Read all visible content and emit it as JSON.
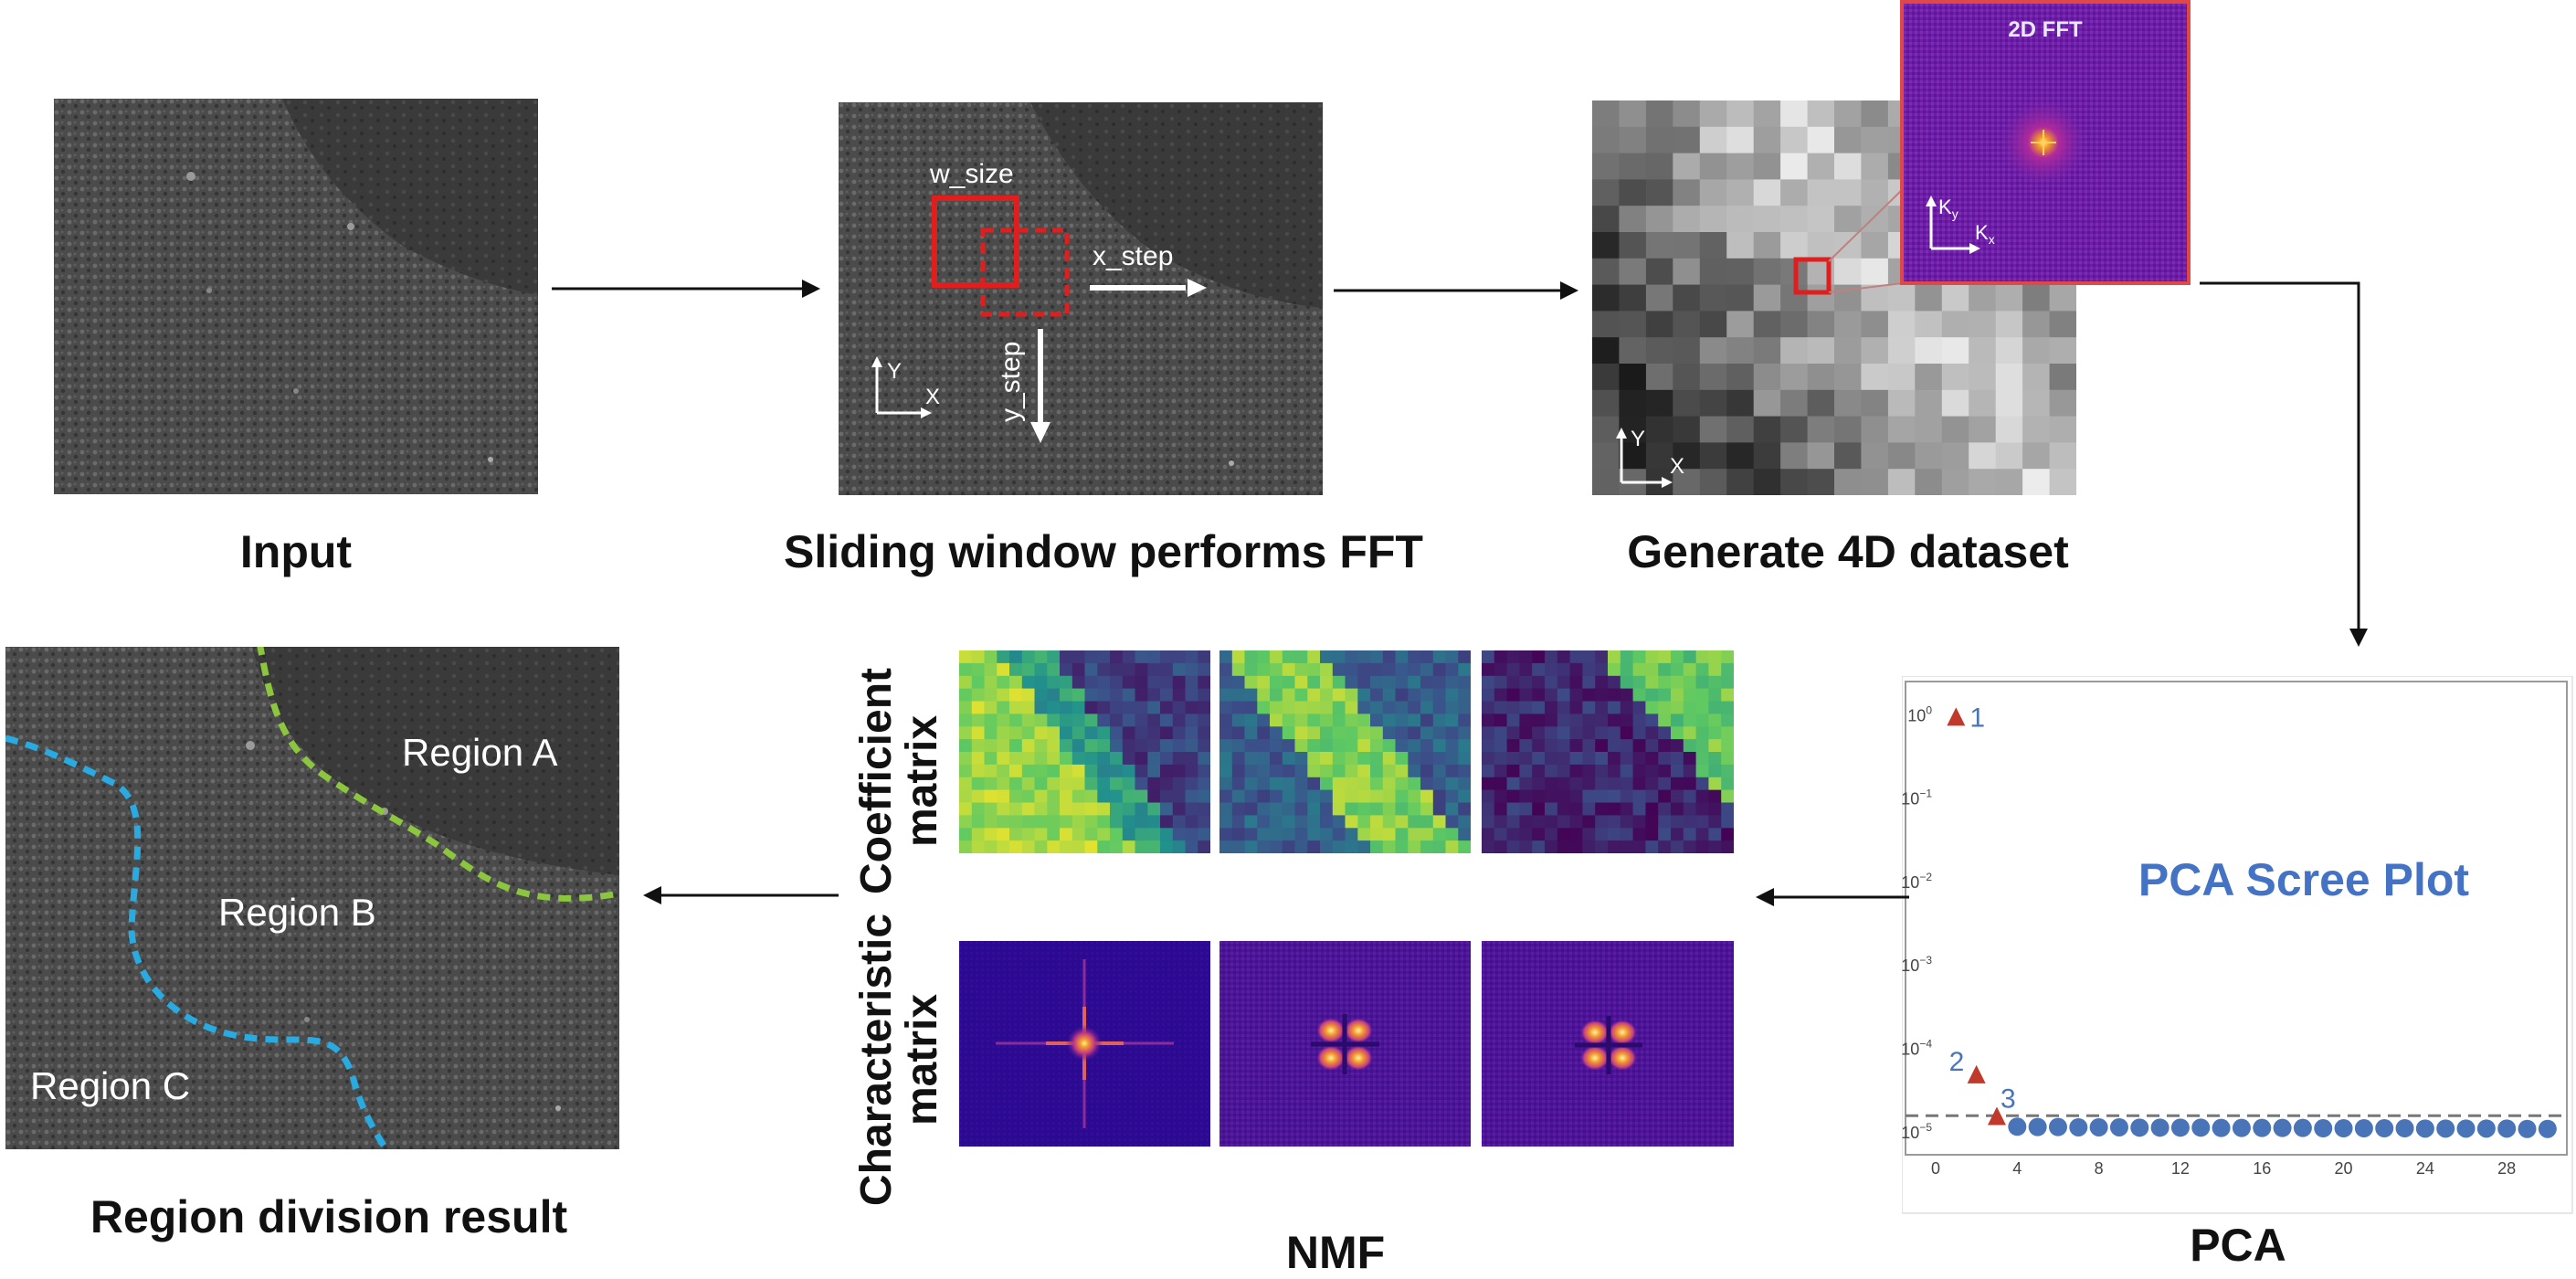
{
  "steps": {
    "input": "Input",
    "sliding": "Sliding window performs FFT",
    "generate": "Generate 4D dataset",
    "pca": "PCA",
    "nmf": "NMF",
    "region": "Region division result"
  },
  "sliding_window": {
    "w_size": "w_size",
    "x_step": "x_step",
    "y_step": "y_step",
    "axis_y": "Y",
    "axis_x": "X"
  },
  "dataset": {
    "fft_title": "2D FFT",
    "axis_y": "Y",
    "axis_x": "X",
    "k_y": "K",
    "k_y_sub": "y",
    "k_x": "K",
    "k_x_sub": "x"
  },
  "nmf": {
    "coefficient_line1": "Coefficient",
    "coefficient_line2": "matrix",
    "characteristic_line1": "Characteristic",
    "characteristic_line2": "matrix"
  },
  "regions": {
    "a": "Region A",
    "b": "Region B",
    "c": "Region C"
  },
  "colors": {
    "boundary_ab": "#8cc63f",
    "boundary_bc": "#29abe2",
    "window_red": "#e01e1e",
    "scree_title": "#4472c4",
    "marker_red": "#c0392b",
    "marker_blue": "#4a74b8"
  },
  "chart_data": {
    "type": "scatter",
    "title": "PCA Scree Plot",
    "xlabel": "",
    "ylabel": "",
    "y_scale": "log",
    "ylim": [
      7e-06,
      1.8
    ],
    "xlim": [
      0,
      30.5
    ],
    "x_ticks": [
      0,
      4,
      8,
      12,
      16,
      20,
      24,
      28
    ],
    "y_ticks": [
      {
        "value": 1,
        "exp": "0"
      },
      {
        "value": 0.1,
        "exp": "−1"
      },
      {
        "value": 0.01,
        "exp": "−2"
      },
      {
        "value": 0.001,
        "exp": "−3"
      },
      {
        "value": 0.0001,
        "exp": "−4"
      },
      {
        "value": 1e-05,
        "exp": "−5"
      }
    ],
    "y_tick_base": "10",
    "threshold": 1.6e-05,
    "highlighted": [
      {
        "x": 1,
        "y": 0.95,
        "label": "1"
      },
      {
        "x": 2,
        "y": 4.9e-05,
        "label": "2"
      },
      {
        "x": 3,
        "y": 1.55e-05,
        "label": "3"
      }
    ],
    "series": [
      {
        "x": [
          4,
          5,
          6,
          7,
          8,
          9,
          10,
          11,
          12,
          13,
          14,
          15,
          16,
          17,
          18,
          19,
          20,
          21,
          22,
          23,
          24,
          25,
          26,
          27,
          28,
          29,
          30
        ],
        "values": [
          1.18e-05,
          1.17e-05,
          1.17e-05,
          1.16e-05,
          1.16e-05,
          1.16e-05,
          1.15e-05,
          1.15e-05,
          1.15e-05,
          1.15e-05,
          1.14e-05,
          1.14e-05,
          1.14e-05,
          1.14e-05,
          1.14e-05,
          1.13e-05,
          1.13e-05,
          1.13e-05,
          1.13e-05,
          1.13e-05,
          1.12e-05,
          1.12e-05,
          1.12e-05,
          1.12e-05,
          1.12e-05,
          1.11e-05,
          1.11e-05
        ]
      }
    ]
  }
}
